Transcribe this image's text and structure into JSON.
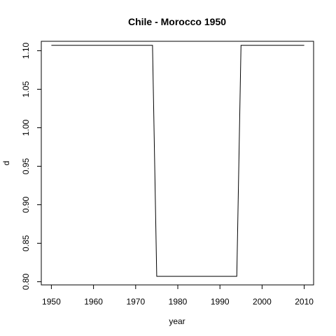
{
  "chart_data": {
    "type": "line",
    "title": "Chile - Morocco 1950",
    "xlabel": "year",
    "ylabel": "d",
    "xlim": [
      1950,
      2010
    ],
    "ylim": [
      0.8,
      1.11
    ],
    "x_ticks": [
      1950,
      1960,
      1970,
      1980,
      1990,
      2000,
      2010
    ],
    "x_tick_labels": [
      "1950",
      "1960",
      "1970",
      "1980",
      "1990",
      "2000",
      "2010"
    ],
    "y_ticks": [
      0.8,
      0.85,
      0.9,
      0.95,
      1.0,
      1.05,
      1.1
    ],
    "y_tick_labels": [
      "0.80",
      "0.85",
      "0.90",
      "0.95",
      "1.00",
      "1.05",
      "1.10"
    ],
    "grid": false,
    "series": [
      {
        "x": [
          1950,
          1951,
          1952,
          1953,
          1954,
          1955,
          1956,
          1957,
          1958,
          1959,
          1960,
          1961,
          1962,
          1963,
          1964,
          1965,
          1966,
          1967,
          1968,
          1969,
          1970,
          1971,
          1972,
          1973,
          1974,
          1975,
          1976,
          1977,
          1978,
          1979,
          1980,
          1981,
          1982,
          1983,
          1984,
          1985,
          1986,
          1987,
          1988,
          1989,
          1990,
          1991,
          1992,
          1993,
          1994,
          1995,
          1996,
          1997,
          1998,
          1999,
          2000,
          2001,
          2002,
          2003,
          2004,
          2005,
          2006,
          2007,
          2008,
          2009,
          2010
        ],
        "y": [
          1.107,
          1.107,
          1.107,
          1.107,
          1.107,
          1.107,
          1.107,
          1.107,
          1.107,
          1.107,
          1.107,
          1.107,
          1.107,
          1.107,
          1.107,
          1.107,
          1.107,
          1.107,
          1.107,
          1.107,
          1.107,
          1.107,
          1.107,
          1.107,
          1.107,
          0.807,
          0.807,
          0.807,
          0.807,
          0.807,
          0.807,
          0.807,
          0.807,
          0.807,
          0.807,
          0.807,
          0.807,
          0.807,
          0.807,
          0.807,
          0.807,
          0.807,
          0.807,
          0.807,
          0.807,
          1.107,
          1.107,
          1.107,
          1.107,
          1.107,
          1.107,
          1.107,
          1.107,
          1.107,
          1.107,
          1.107,
          1.107,
          1.107,
          1.107,
          1.107,
          1.107
        ],
        "color": "#000000"
      }
    ]
  }
}
